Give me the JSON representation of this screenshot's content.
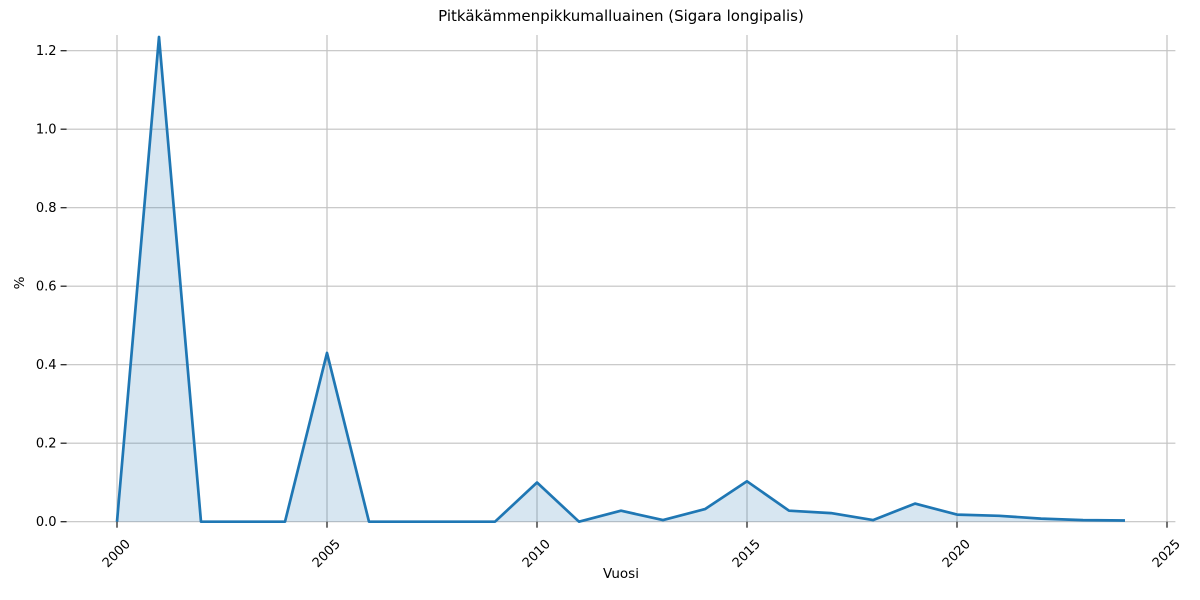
{
  "chart_data": {
    "type": "area",
    "title": "Pitkäkämmenpikkumalluainen (Sigara longipalis)",
    "xlabel": "Vuosi",
    "ylabel": "%",
    "x": [
      2000,
      2001,
      2002,
      2003,
      2004,
      2005,
      2006,
      2007,
      2008,
      2009,
      2010,
      2011,
      2012,
      2013,
      2014,
      2015,
      2016,
      2017,
      2018,
      2019,
      2020,
      2021,
      2022,
      2023,
      2024
    ],
    "values": [
      0,
      1.235,
      0,
      0,
      0,
      0.43,
      0,
      0,
      0,
      0,
      0.1,
      0,
      0.028,
      0.004,
      0.032,
      0.103,
      0.028,
      0.022,
      0.004,
      0.046,
      0.018,
      0.015,
      0.008,
      0.004,
      0.003
    ],
    "xlim": [
      1998.8,
      2025.2
    ],
    "ylim": [
      0,
      1.24
    ],
    "xticks": [
      2000,
      2005,
      2010,
      2015,
      2020,
      2025
    ],
    "yticks": [
      0,
      0.2,
      0.4,
      0.6,
      0.8,
      1.0,
      1.2
    ],
    "grid": true,
    "legend": "none",
    "line_color": "#1f77b4",
    "fill_color": "#1f77b4",
    "fill_opacity": 0.18,
    "grid_color": "#c2c2c2",
    "tick_color": "#262626",
    "tick_label_size": 13,
    "x_tick_rotation": -45
  }
}
